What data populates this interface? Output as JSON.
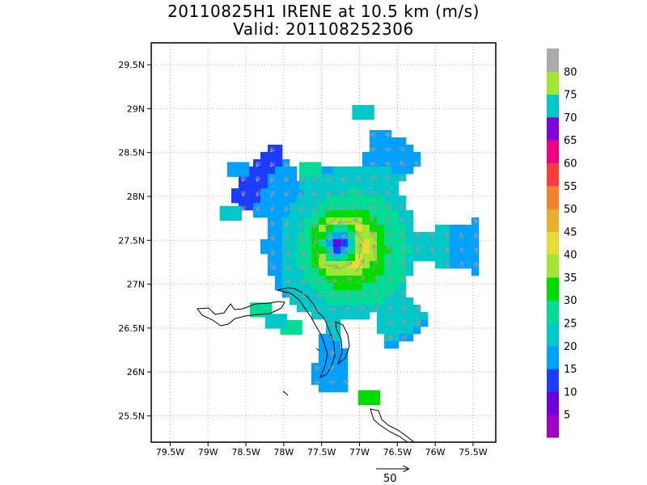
{
  "title": {
    "line1": "20110825H1 IRENE at 10.5 km (m/s)",
    "line2": "Valid: 201108252306"
  },
  "axes": {
    "lon_ticks": [
      -79.5,
      -79,
      -78.5,
      -78,
      -77.5,
      -77,
      -76.5,
      -76,
      -75.5
    ],
    "lon_labels": [
      "79.5W",
      "79W",
      "78.5W",
      "78W",
      "77.5W",
      "77W",
      "76.5W",
      "76W",
      "75.5W"
    ],
    "lat_ticks": [
      25.5,
      26,
      26.5,
      27,
      27.5,
      28,
      28.5,
      29,
      29.5
    ],
    "lat_labels": [
      "25.5N",
      "26N",
      "26.5N",
      "27N",
      "27.5N",
      "28N",
      "28.5N",
      "29N",
      "29.5N"
    ],
    "lon_range": [
      -79.75,
      -75.2
    ],
    "lat_range": [
      25.2,
      29.75
    ],
    "grid": true
  },
  "colorbar": {
    "labels": [
      "5",
      "10",
      "15",
      "20",
      "25",
      "30",
      "35",
      "40",
      "45",
      "50",
      "55",
      "60",
      "65",
      "70",
      "75",
      "80"
    ],
    "colors": [
      "#a000c8",
      "#6e00dc",
      "#1e3cff",
      "#00a0ff",
      "#00c8c8",
      "#00dc96",
      "#00dc00",
      "#a0e632",
      "#e6dc32",
      "#e6af2d",
      "#f08228",
      "#fa3c3c",
      "#f00082",
      "#8200dc",
      "#00c8c8",
      "#a0e632",
      "#aaaaaa"
    ]
  },
  "vector_scale": {
    "label": "50"
  },
  "wind_field": {
    "units": "m/s",
    "center_lon": -77.25,
    "center_lat": 27.45,
    "max_wind": 40,
    "radius_max_wind_deg": 0.3
  }
}
